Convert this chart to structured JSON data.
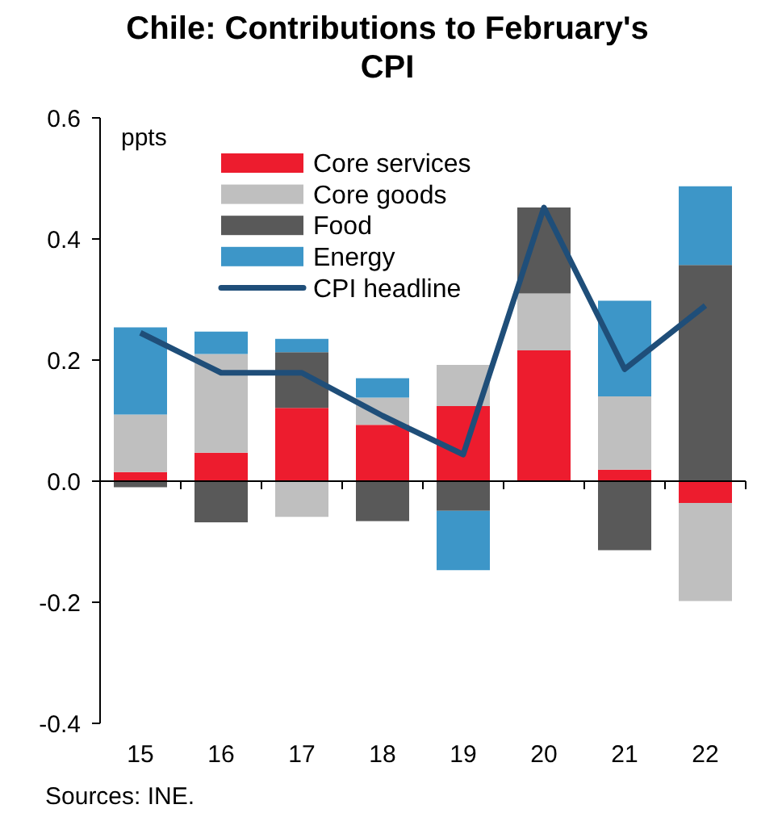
{
  "chart_data": {
    "type": "bar",
    "title": "Chile: Contributions to February's CPI",
    "ylabel": "ppts",
    "annotations": [
      "Sources: INE."
    ],
    "categories": [
      "15",
      "16",
      "17",
      "18",
      "19",
      "20",
      "21",
      "22"
    ],
    "stacked": true,
    "ylim": [
      -0.4,
      0.6
    ],
    "yticks": [
      {
        "value": -0.4,
        "label": "-0.4"
      },
      {
        "value": -0.2,
        "label": "-0.2"
      },
      {
        "value": 0,
        "label": "0.0"
      },
      {
        "value": 0.2,
        "label": "0.2"
      },
      {
        "value": 0.4,
        "label": "0.4"
      },
      {
        "value": 0.6,
        "label": "0.6"
      }
    ],
    "legend": "top",
    "series": [
      {
        "name": "Core services",
        "color": "#ed1c2e",
        "values": [
          0.015,
          0.047,
          0.121,
          0.093,
          0.124,
          0.216,
          0.019,
          -0.036
        ]
      },
      {
        "name": "Core goods",
        "color": "#bfbfbf",
        "values": [
          0.095,
          0.163,
          -0.059,
          0.045,
          0.068,
          0.094,
          0.121,
          -0.162
        ]
      },
      {
        "name": "Food",
        "color": "#595959",
        "values": [
          -0.01,
          -0.068,
          0.092,
          -0.066,
          -0.049,
          0.142,
          -0.114,
          0.357
        ]
      },
      {
        "name": "Energy",
        "color": "#3d96c8",
        "values": [
          0.144,
          0.037,
          0.022,
          0.032,
          -0.098,
          null,
          0.158,
          0.13
        ]
      },
      {
        "name": "CPI headline",
        "type": "line",
        "color": "#1f4e79",
        "values": [
          0.245,
          0.179,
          0.179,
          0.108,
          0.044,
          0.452,
          0.185,
          0.29
        ]
      }
    ]
  }
}
